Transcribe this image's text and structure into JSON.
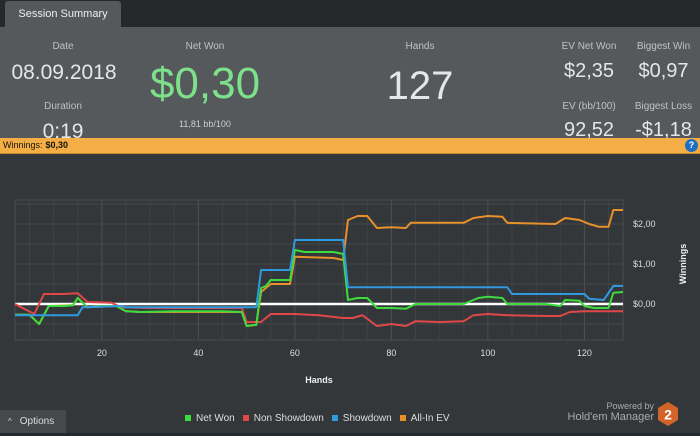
{
  "tab": {
    "label": "Session Summary"
  },
  "summary": {
    "date_label": "Date",
    "date": "08.09.2018",
    "duration_label": "Duration",
    "duration": "0:19",
    "net_won_label": "Net Won",
    "net_won": "$0,30",
    "bb100": "11,81 bb/100",
    "hands_label": "Hands",
    "hands": "127",
    "ev_net_won_label": "EV Net Won",
    "ev_net_won": "$2,35",
    "biggest_win_label": "Biggest Win",
    "biggest_win": "$0,97",
    "ev_bb100_label": "EV (bb/100)",
    "ev_bb100": "92,52",
    "biggest_loss_label": "Biggest Loss",
    "biggest_loss": "-$1,18",
    "net_won_color": "#7de08a"
  },
  "winnings_bar": {
    "label": "Winnings:",
    "value": "$0,30",
    "help_icon": "?"
  },
  "chart_data": {
    "type": "line",
    "xlabel": "Hands",
    "ylabel": "Winnings",
    "xlim": [
      2,
      128
    ],
    "ylim": [
      -0.9,
      2.6
    ],
    "xticks": [
      20,
      40,
      60,
      80,
      100,
      120
    ],
    "yticks": [
      {
        "v": 0,
        "label": "$0,00"
      },
      {
        "v": 1,
        "label": "$1,00"
      },
      {
        "v": 2,
        "label": "$2,00"
      }
    ],
    "grid": true,
    "legend": "bottom",
    "series": [
      {
        "name": "Net Won",
        "color": "#3ddc3d",
        "points": [
          [
            2,
            -0.27
          ],
          [
            5,
            -0.27
          ],
          [
            7,
            -0.5
          ],
          [
            9,
            -0.05
          ],
          [
            12,
            -0.05
          ],
          [
            14,
            -0.03
          ],
          [
            15,
            0.15
          ],
          [
            17,
            -0.08
          ],
          [
            20,
            -0.05
          ],
          [
            23,
            -0.05
          ],
          [
            25,
            -0.18
          ],
          [
            28,
            -0.2
          ],
          [
            35,
            -0.18
          ],
          [
            45,
            -0.18
          ],
          [
            49,
            -0.2
          ],
          [
            50,
            -0.55
          ],
          [
            52,
            -0.52
          ],
          [
            53,
            0.4
          ],
          [
            54,
            0.45
          ],
          [
            55,
            0.6
          ],
          [
            59,
            0.6
          ],
          [
            60,
            1.35
          ],
          [
            62,
            1.3
          ],
          [
            68,
            1.3
          ],
          [
            70,
            1.25
          ],
          [
            71,
            0.1
          ],
          [
            73,
            0.15
          ],
          [
            75,
            0.15
          ],
          [
            77,
            -0.1
          ],
          [
            80,
            -0.1
          ],
          [
            83,
            -0.12
          ],
          [
            85,
            0
          ],
          [
            95,
            0
          ],
          [
            98,
            0.15
          ],
          [
            100,
            0.18
          ],
          [
            103,
            0.15
          ],
          [
            104,
            0
          ],
          [
            112,
            0
          ],
          [
            115,
            -0.05
          ],
          [
            116,
            0.1
          ],
          [
            119,
            0.08
          ],
          [
            120,
            -0.05
          ],
          [
            122,
            -0.1
          ],
          [
            125,
            -0.1
          ],
          [
            126,
            0.28
          ],
          [
            128,
            0.3
          ]
        ]
      },
      {
        "name": "Non Showdown",
        "color": "#e04848",
        "points": [
          [
            2,
            0
          ],
          [
            6,
            -0.25
          ],
          [
            8,
            0.25
          ],
          [
            12,
            0.25
          ],
          [
            15,
            0.27
          ],
          [
            17,
            0.05
          ],
          [
            22,
            0.03
          ],
          [
            24,
            -0.08
          ],
          [
            30,
            -0.1
          ],
          [
            49,
            -0.1
          ],
          [
            50,
            -0.45
          ],
          [
            53,
            -0.45
          ],
          [
            55,
            -0.25
          ],
          [
            60,
            -0.25
          ],
          [
            65,
            -0.28
          ],
          [
            70,
            -0.35
          ],
          [
            72,
            -0.35
          ],
          [
            74,
            -0.28
          ],
          [
            77,
            -0.55
          ],
          [
            80,
            -0.5
          ],
          [
            83,
            -0.55
          ],
          [
            85,
            -0.43
          ],
          [
            90,
            -0.45
          ],
          [
            95,
            -0.43
          ],
          [
            97,
            -0.28
          ],
          [
            100,
            -0.25
          ],
          [
            104,
            -0.28
          ],
          [
            112,
            -0.3
          ],
          [
            115,
            -0.3
          ],
          [
            117,
            -0.2
          ],
          [
            120,
            -0.18
          ],
          [
            122,
            -0.18
          ],
          [
            128,
            -0.18
          ]
        ]
      },
      {
        "name": "Showdown",
        "color": "#2f9ae0",
        "points": [
          [
            2,
            -0.28
          ],
          [
            15,
            -0.28
          ],
          [
            16,
            -0.08
          ],
          [
            24,
            -0.05
          ],
          [
            25,
            -0.08
          ],
          [
            52,
            -0.08
          ],
          [
            53,
            0.85
          ],
          [
            59,
            0.85
          ],
          [
            60,
            1.6
          ],
          [
            70,
            1.6
          ],
          [
            71,
            0.42
          ],
          [
            104,
            0.42
          ],
          [
            105,
            0.25
          ],
          [
            120,
            0.25
          ],
          [
            121,
            0.13
          ],
          [
            124,
            0.1
          ],
          [
            126,
            0.45
          ],
          [
            128,
            0.45
          ]
        ]
      },
      {
        "name": "All-In EV",
        "color": "#e8902a",
        "points": [
          [
            2,
            -0.27
          ],
          [
            5,
            -0.27
          ],
          [
            7,
            -0.5
          ],
          [
            9,
            -0.05
          ],
          [
            14,
            -0.03
          ],
          [
            15,
            0.15
          ],
          [
            17,
            -0.08
          ],
          [
            23,
            -0.05
          ],
          [
            25,
            -0.18
          ],
          [
            28,
            -0.2
          ],
          [
            49,
            -0.2
          ],
          [
            50,
            -0.55
          ],
          [
            52,
            -0.52
          ],
          [
            53,
            0.3
          ],
          [
            55,
            0.5
          ],
          [
            59,
            0.5
          ],
          [
            60,
            1.18
          ],
          [
            68,
            1.15
          ],
          [
            70,
            1.1
          ],
          [
            71,
            2.1
          ],
          [
            73,
            2.2
          ],
          [
            75,
            2.2
          ],
          [
            77,
            1.9
          ],
          [
            80,
            1.92
          ],
          [
            83,
            1.9
          ],
          [
            84,
            2.03
          ],
          [
            95,
            2.03
          ],
          [
            97,
            2.15
          ],
          [
            100,
            2.2
          ],
          [
            103,
            2.18
          ],
          [
            104,
            2.03
          ],
          [
            114,
            2
          ],
          [
            116,
            2.15
          ],
          [
            119,
            2.1
          ],
          [
            121,
            2
          ],
          [
            123,
            1.93
          ],
          [
            125,
            1.93
          ],
          [
            126,
            2.35
          ],
          [
            128,
            2.35
          ]
        ]
      }
    ]
  },
  "footer": {
    "options_label": "Options",
    "options_icon": "^",
    "powered_by": "Powered by",
    "brand": "Hold'em Manager",
    "logo_text": "2"
  }
}
